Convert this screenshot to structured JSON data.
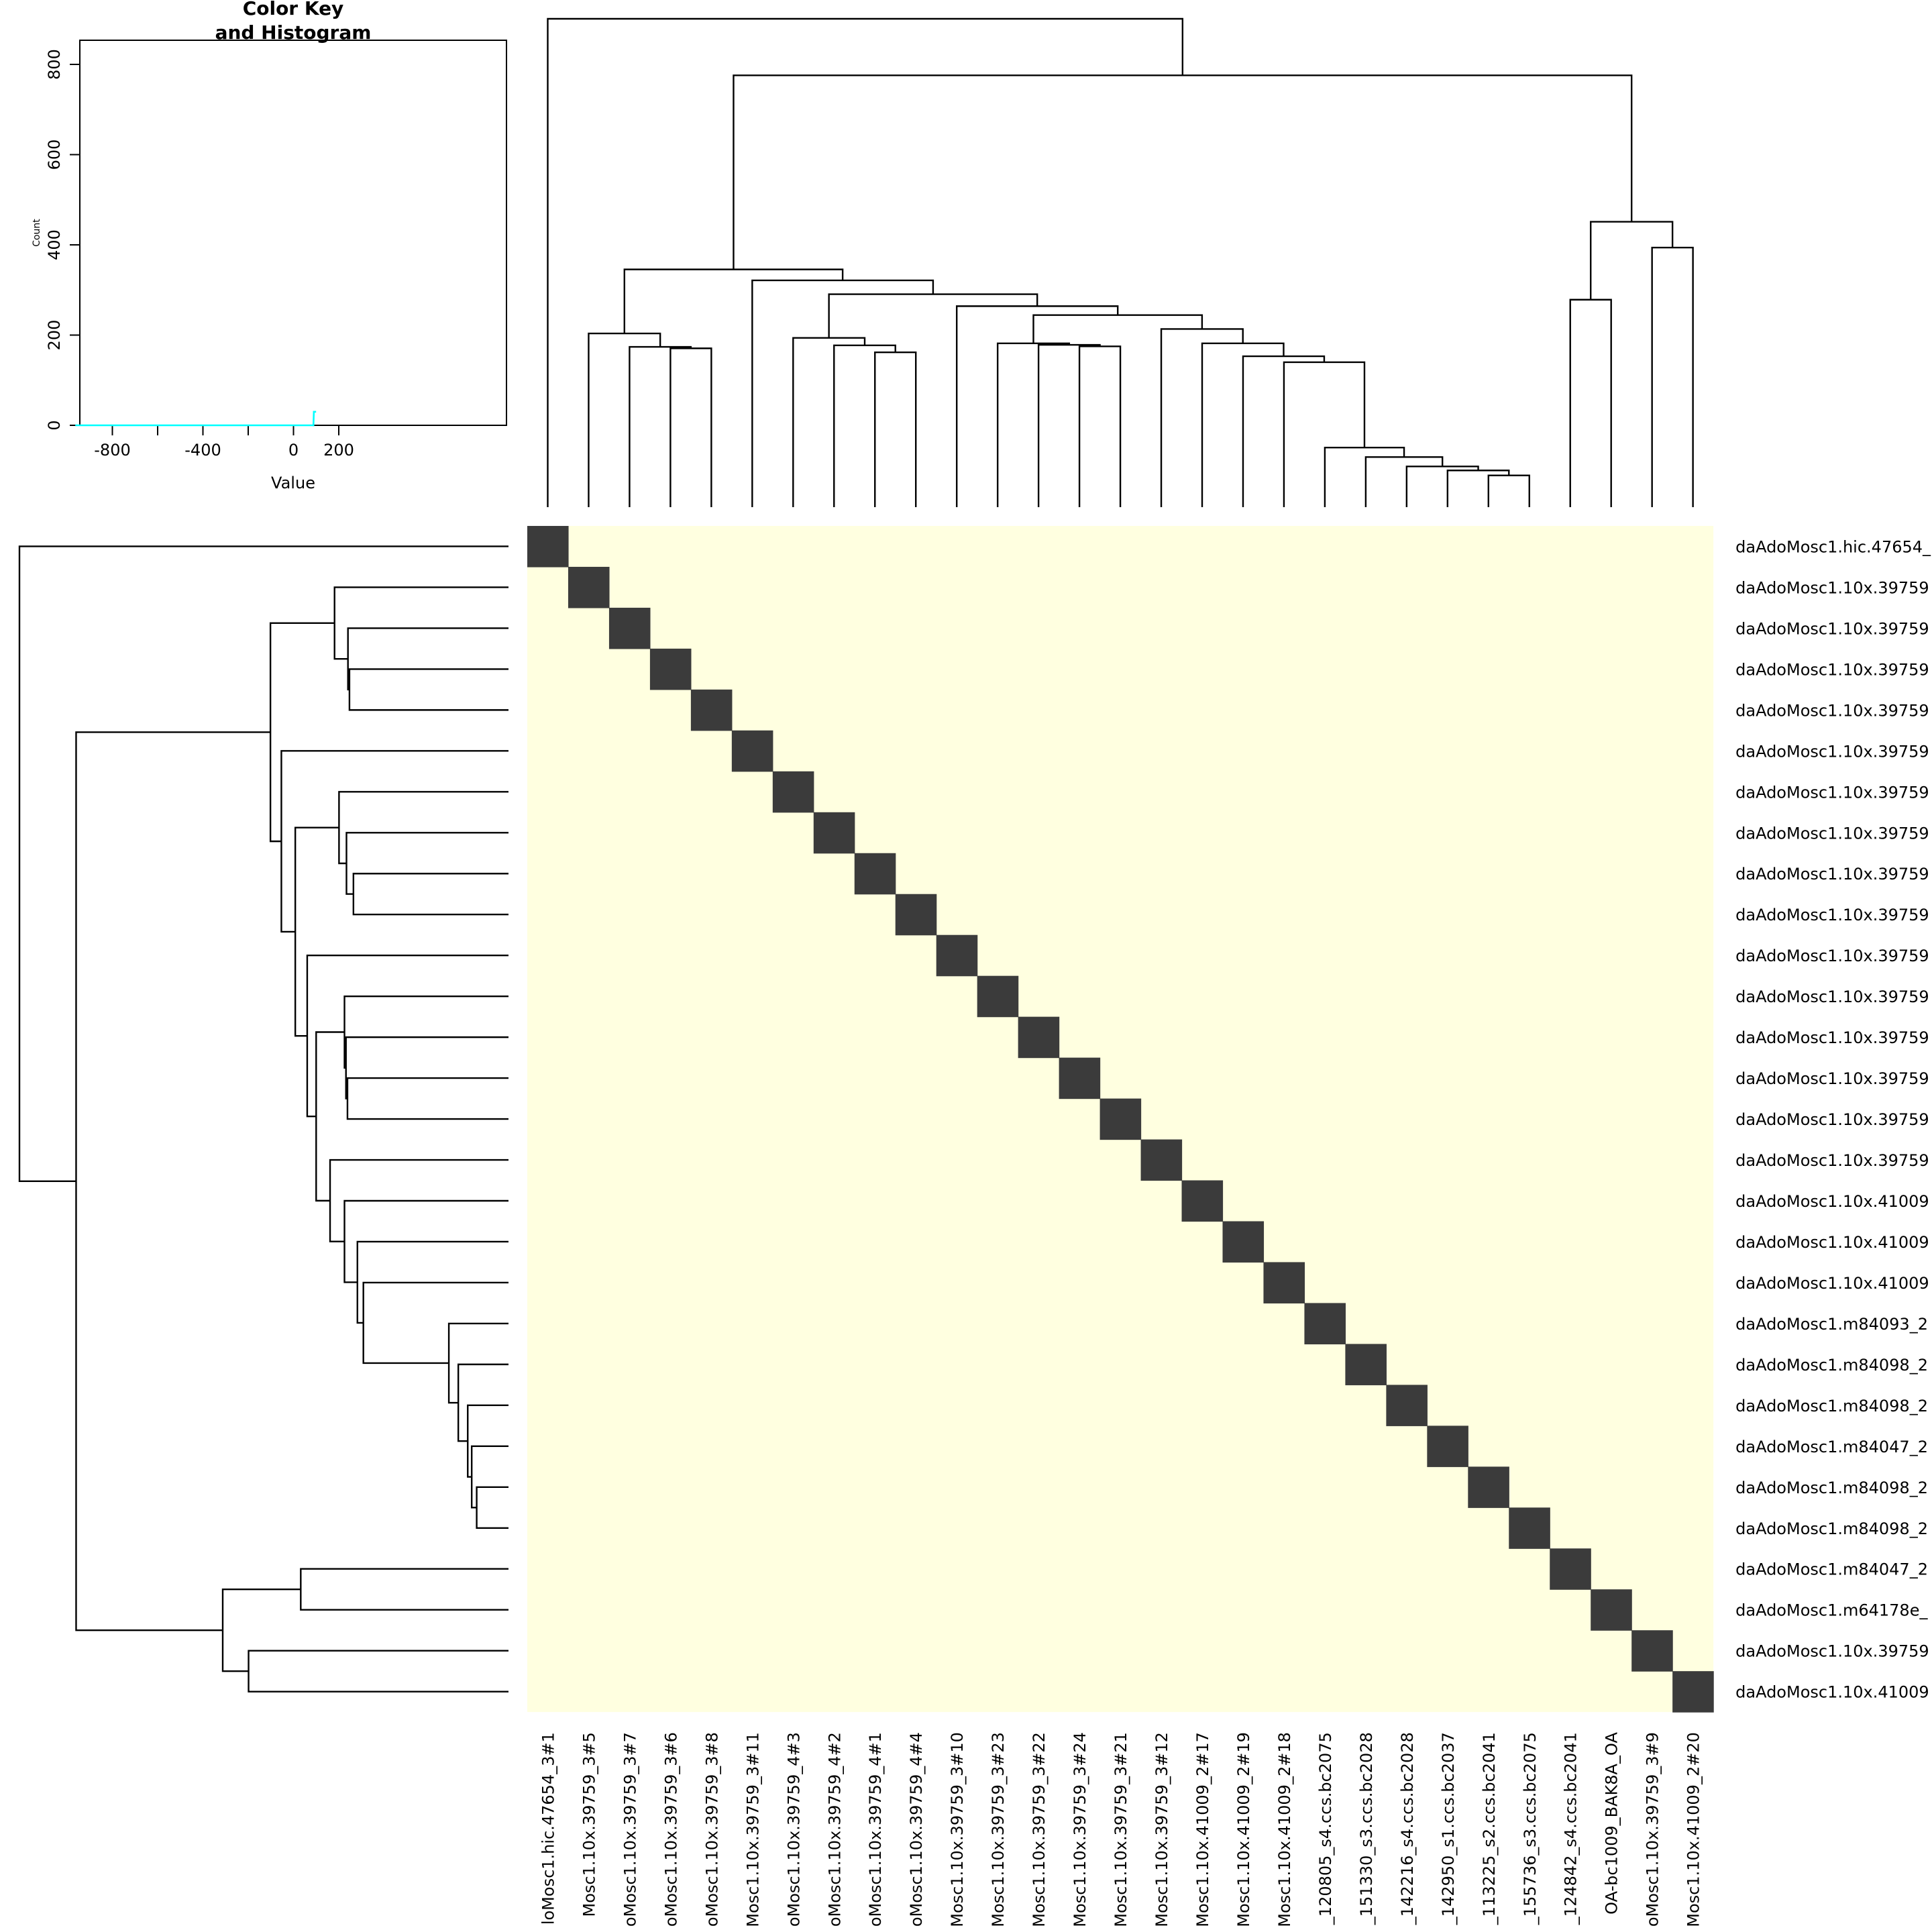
{
  "chart_data": [
    {
      "type": "histogram",
      "title": "Color Key\nand Histogram",
      "xlabel": "Value",
      "ylabel": "Count",
      "xlim": [
        -960,
        960
      ],
      "ylim": [
        0,
        850
      ],
      "x_ticks": [
        -800,
        -400,
        0,
        200
      ],
      "x_minor_ticks": [
        -600,
        -200
      ],
      "y_ticks": [
        0,
        200,
        400,
        600,
        800
      ],
      "histogram_color": "#00ffff",
      "histogram_segments": [
        {
          "x": [
            -960,
            88
          ],
          "y": [
            0,
            0
          ]
        },
        {
          "x": [
            88,
            90
          ],
          "y": [
            0,
            30
          ]
        },
        {
          "x": [
            90,
            96
          ],
          "y": [
            30,
            30
          ]
        }
      ]
    },
    {
      "type": "heatmap",
      "low_color": "#ffffe0",
      "high_color": "#3b3b3b",
      "diagonal_only": true,
      "row_labels": [
        "daAdoMosc1.hic.47654_",
        "daAdoMosc1.10x.39759",
        "daAdoMosc1.10x.39759",
        "daAdoMosc1.10x.39759",
        "daAdoMosc1.10x.39759",
        "daAdoMosc1.10x.39759",
        "daAdoMosc1.10x.39759",
        "daAdoMosc1.10x.39759",
        "daAdoMosc1.10x.39759",
        "daAdoMosc1.10x.39759",
        "daAdoMosc1.10x.39759",
        "daAdoMosc1.10x.39759",
        "daAdoMosc1.10x.39759",
        "daAdoMosc1.10x.39759",
        "daAdoMosc1.10x.39759",
        "daAdoMosc1.10x.39759",
        "daAdoMosc1.10x.41009",
        "daAdoMosc1.10x.41009",
        "daAdoMosc1.10x.41009",
        "daAdoMosc1.m84093_2",
        "daAdoMosc1.m84098_2",
        "daAdoMosc1.m84098_2",
        "daAdoMosc1.m84047_2",
        "daAdoMosc1.m84098_2",
        "daAdoMosc1.m84098_2",
        "daAdoMosc1.m84047_2",
        "daAdoMosc1.m64178e_",
        "daAdoMosc1.10x.39759",
        "daAdoMosc1.10x.41009"
      ],
      "col_labels": [
        "loMosc1.hic.47654_3#1",
        "Mosc1.10x.39759_3#5",
        "oMosc1.10x.39759_3#7",
        "oMosc1.10x.39759_3#6",
        "oMosc1.10x.39759_3#8",
        "Mosc1.10x.39759_3#11",
        "oMosc1.10x.39759_4#3",
        "oMosc1.10x.39759_4#2",
        "oMosc1.10x.39759_4#1",
        "oMosc1.10x.39759_4#4",
        "Mosc1.10x.39759_3#10",
        "Mosc1.10x.39759_3#23",
        "Mosc1.10x.39759_3#22",
        "Mosc1.10x.39759_3#24",
        "Mosc1.10x.39759_3#21",
        "Mosc1.10x.39759_3#12",
        "Mosc1.10x.41009_2#17",
        "Mosc1.10x.41009_2#19",
        "Mosc1.10x.41009_2#18",
        "_120805_s4.ccs.bc2075",
        "_151330_s3.ccs.bc2028",
        "_142216_s4.ccs.bc2028",
        "_142950_s1.ccs.bc2037",
        "_113225_s2.ccs.bc2041",
        "_155736_s3.ccs.bc2075",
        "_124842_s4.ccs.bc2041",
        "OA-bc1009_BAK8A_OA",
        "oMosc1.10x.39759_3#9",
        "Mosc1.10x.41009_2#20"
      ]
    }
  ]
}
